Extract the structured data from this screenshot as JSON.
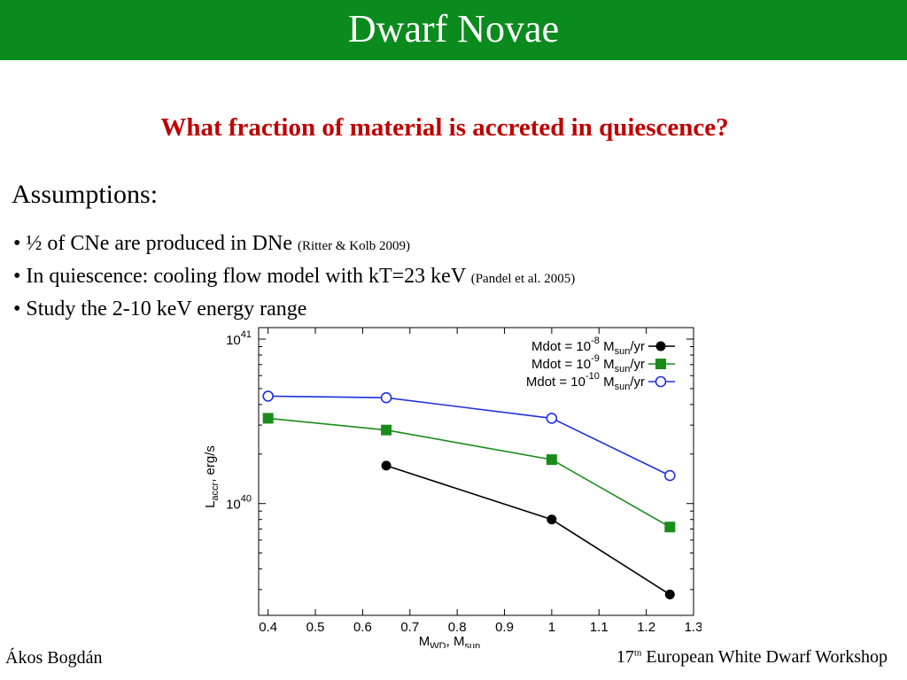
{
  "header": {
    "title": "Dwarf Novae",
    "bar_color": "#0b8a1e"
  },
  "question": "What fraction of material is accreted in quiescence?",
  "assumptions_heading": "Assumptions:",
  "bullets": [
    {
      "text": "• ½ of CNe are produced in DNe ",
      "cite": "(Ritter & Kolb 2009)"
    },
    {
      "text": "• In quiescence: cooling flow model with kT=23 keV ",
      "cite": "(Pandel et al. 2005)"
    },
    {
      "text": "• Study the 2-10 keV energy range",
      "cite": ""
    }
  ],
  "footer": {
    "author": "Ákos Bogdán",
    "event_num": "17",
    "event_sup": "tn",
    "event_name": " European White Dwarf Workshop"
  },
  "chart_data": {
    "type": "line",
    "xlim": [
      0.38,
      1.3
    ],
    "ylim_log10": [
      39.32,
      41.07
    ],
    "y_scale": "log",
    "grid": false,
    "legend_position": "top-right",
    "x_ticks": [
      0.4,
      0.5,
      0.6,
      0.7,
      0.8,
      0.9,
      1,
      1.1,
      1.2,
      1.3
    ],
    "y_major_ticks_log10": [
      40,
      41
    ],
    "xlabel": {
      "main": "M",
      "sub1": "WD",
      "mid": ", M",
      "sub2": "sun"
    },
    "ylabel": {
      "main": "L",
      "sub": "accr",
      "tail": ", erg/s"
    },
    "series": [
      {
        "legend": {
          "pre": "Mdot = 10",
          "exp": "-8",
          "mid": " M",
          "sub": "sun",
          "post": "/yr"
        },
        "color": "#000000",
        "marker": "filled-circle",
        "x": [
          0.65,
          1.0,
          1.25
        ],
        "y": [
          1.7e+40,
          8e+39,
          2.8e+39
        ]
      },
      {
        "legend": {
          "pre": "Mdot = 10",
          "exp": "-9",
          "mid": " M",
          "sub": "sun",
          "post": "/yr"
        },
        "color": "#1a8c1a",
        "marker": "filled-square",
        "x": [
          0.4,
          0.65,
          1.0,
          1.25
        ],
        "y": [
          3.3e+40,
          2.8e+40,
          1.85e+40,
          7.2e+39
        ]
      },
      {
        "legend": {
          "pre": "Mdot = 10",
          "exp": "-10",
          "mid": " M",
          "sub": "sun",
          "post": "/yr"
        },
        "color": "#1f2fe0",
        "marker": "open-circle",
        "x": [
          0.4,
          0.65,
          1.0,
          1.25
        ],
        "y": [
          4.5e+40,
          4.4e+40,
          3.3e+40,
          1.48e+40
        ]
      }
    ]
  }
}
